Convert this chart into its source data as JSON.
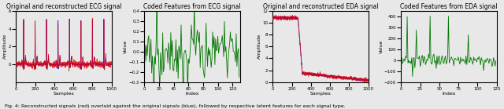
{
  "ecg_title": "Original and reconstructed ECG signal",
  "ecg_xlabel": "Samples",
  "ecg_ylabel": "Amplitude",
  "ecg_xlim": [
    0,
    1000
  ],
  "ecg_ylim": [
    -2,
    6
  ],
  "ecg_xticks": [
    0,
    200,
    400,
    600,
    800,
    1000
  ],
  "ecg_yticks": [
    0,
    2,
    4,
    6
  ],
  "ecg_feat_title": "Coded Features from ECG signal",
  "ecg_feat_xlabel": "Index",
  "ecg_feat_ylabel": "Value",
  "ecg_feat_xlim": [
    0,
    130
  ],
  "ecg_feat_ylim": [
    -0.3,
    0.4
  ],
  "ecg_feat_xticks": [
    0,
    20,
    40,
    60,
    80,
    100,
    120
  ],
  "eda_title": "Original and reconstructed EDA signal",
  "eda_xlabel": "Samples",
  "eda_ylabel": "Amplitude",
  "eda_xlim": [
    0,
    1000
  ],
  "eda_ylim": [
    0,
    12
  ],
  "eda_xticks": [
    0,
    200,
    400,
    600,
    800,
    1000
  ],
  "eda_yticks": [
    0,
    2,
    4,
    6,
    8,
    10,
    12
  ],
  "eda_feat_title": "Coded Features from EDA signal",
  "eda_feat_xlabel": "Index",
  "eda_feat_ylabel": "Value",
  "eda_feat_xlim": [
    0,
    125
  ],
  "eda_feat_ylim": [
    -200,
    450
  ],
  "eda_feat_xticks": [
    0,
    25,
    50,
    75,
    100,
    125
  ],
  "color_blue": "#1f1fff",
  "color_red": "#dd0000",
  "color_green": "#007700",
  "bg_color": "#e8e8e8",
  "caption": "Fig. 4: Reconstructed signals (red) overlaid against the original signals (blue), followed by respective latent features for each signal type.",
  "caption_fontsize": 4.5,
  "figsize": [
    6.4,
    1.39
  ],
  "dpi": 100,
  "title_fontsize": 5.5,
  "label_fontsize": 4.5,
  "tick_fontsize": 4.0,
  "linewidth_signal": 0.6,
  "linewidth_feat": 0.6
}
